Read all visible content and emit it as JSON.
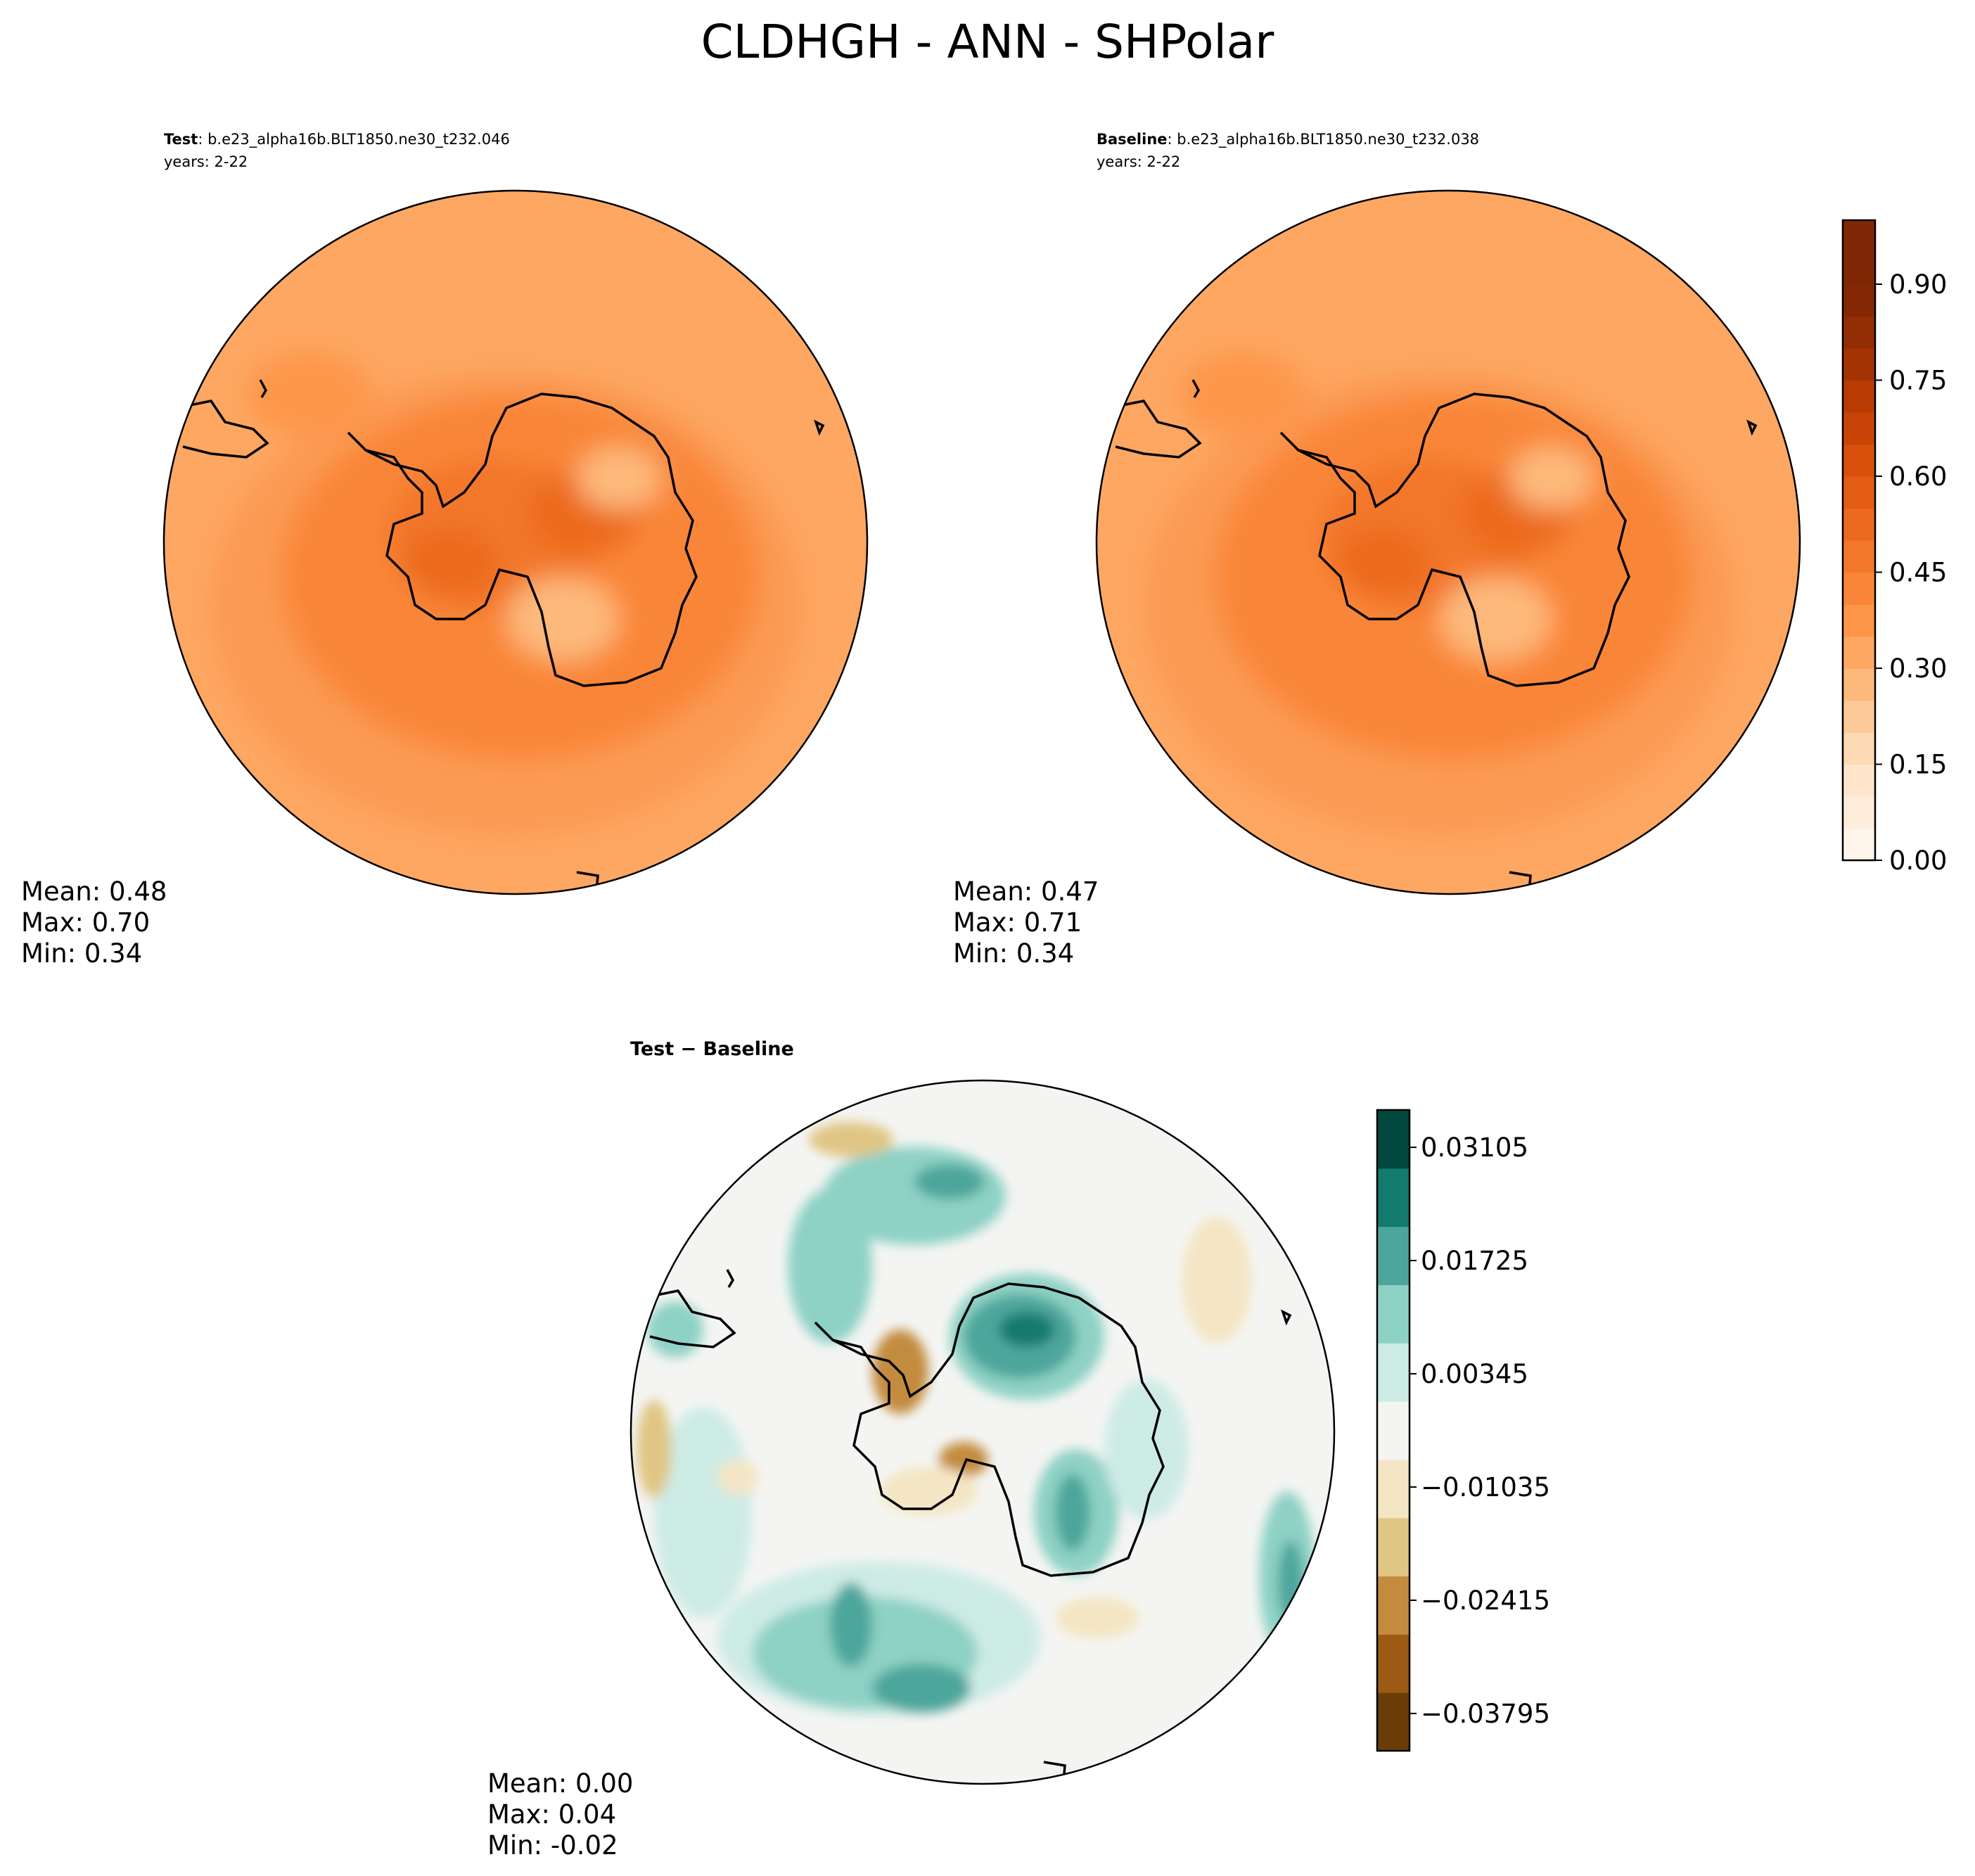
{
  "title": "CLDHGH - ANN - SHPolar",
  "panels": {
    "test": {
      "label_bold": "Test",
      "label_rest": ": b.e23_alpha16b.BLT1850.ne30_t232.046",
      "years": "years: 2-22",
      "stats": {
        "mean": "Mean:  0.48",
        "max": "Max:  0.70",
        "min": "Min:  0.34"
      }
    },
    "baseline": {
      "label_bold": "Baseline",
      "label_rest": ": b.e23_alpha16b.BLT1850.ne30_t232.038",
      "years": "years: 2-22",
      "stats": {
        "mean": "Mean:  0.47",
        "max": "Max:  0.71",
        "min": "Min:  0.34"
      }
    },
    "diff": {
      "label": "Test − Baseline",
      "stats": {
        "mean": "Mean:  0.00",
        "max": "Max:  0.04",
        "min": "Min: -0.02"
      }
    }
  },
  "colorbars": {
    "main": {
      "ticks": [
        "0.00",
        "0.15",
        "0.30",
        "0.45",
        "0.60",
        "0.75",
        "0.90"
      ],
      "levels": [
        0.0,
        0.05,
        0.1,
        0.15,
        0.2,
        0.25,
        0.3,
        0.35,
        0.4,
        0.45,
        0.5,
        0.55,
        0.6,
        0.65,
        0.7,
        0.75,
        0.8,
        0.85,
        0.9,
        0.95,
        1.0
      ],
      "colors": [
        "#fff5eb",
        "#feeddb",
        "#fee5cb",
        "#fdd9b4",
        "#fdc997",
        "#fdb97b",
        "#fda762",
        "#fd9649",
        "#f98638",
        "#f3772b",
        "#ec6a1e",
        "#e35c13",
        "#d8500b",
        "#c84406",
        "#b73b03",
        "#a43303",
        "#932d04",
        "#842804",
        "#7f2704",
        "#7f2704"
      ]
    },
    "diff": {
      "ticks": [
        "−0.03795",
        "−0.02415",
        "−0.01035",
        "0.00345",
        "0.01725",
        "0.03105"
      ],
      "colors": [
        "#6a3d06",
        "#9c5a15",
        "#c38b3e",
        "#e0c684",
        "#f4e6c4",
        "#f4f5f3",
        "#cdebe5",
        "#8ed1c5",
        "#4da69b",
        "#137a6e",
        "#01493f"
      ],
      "range": [
        -0.0425,
        0.0356
      ]
    }
  },
  "chart_data": [
    {
      "type": "heatmap",
      "title": "Test: b.e23_alpha16b.BLT1850.ne30_t232.046",
      "projection": "South Polar Stereographic",
      "summary": {
        "mean": 0.48,
        "max": 0.7,
        "min": 0.34
      },
      "colorbar_ticks": [
        0.0,
        0.15,
        0.3,
        0.45,
        0.6,
        0.75,
        0.9
      ],
      "vlim": [
        0.0,
        1.0
      ]
    },
    {
      "type": "heatmap",
      "title": "Baseline: b.e23_alpha16b.BLT1850.ne30_t232.038",
      "projection": "South Polar Stereographic",
      "summary": {
        "mean": 0.47,
        "max": 0.71,
        "min": 0.34
      },
      "colorbar_ticks": [
        0.0,
        0.15,
        0.3,
        0.45,
        0.6,
        0.75,
        0.9
      ],
      "vlim": [
        0.0,
        1.0
      ]
    },
    {
      "type": "heatmap",
      "title": "Test − Baseline",
      "projection": "South Polar Stereographic",
      "summary": {
        "mean": 0.0,
        "max": 0.04,
        "min": -0.02
      },
      "colorbar_ticks": [
        -0.03795,
        -0.02415,
        -0.01035,
        0.00345,
        0.01725,
        0.03105
      ],
      "vlim": [
        -0.0425,
        0.0356
      ]
    }
  ]
}
